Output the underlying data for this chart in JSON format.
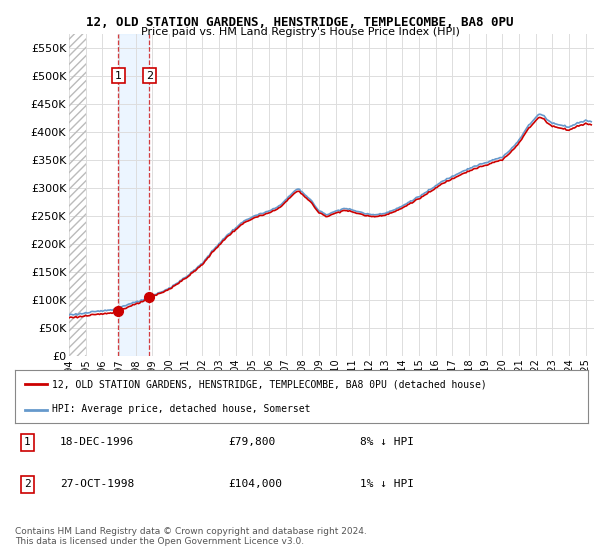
{
  "title": "12, OLD STATION GARDENS, HENSTRIDGE, TEMPLECOMBE, BA8 0PU",
  "subtitle": "Price paid vs. HM Land Registry's House Price Index (HPI)",
  "legend_line1": "12, OLD STATION GARDENS, HENSTRIDGE, TEMPLECOMBE, BA8 0PU (detached house)",
  "legend_line2": "HPI: Average price, detached house, Somerset",
  "transaction1_label": "1",
  "transaction1_date": "18-DEC-1996",
  "transaction1_price": "£79,800",
  "transaction1_hpi": "8% ↓ HPI",
  "transaction2_label": "2",
  "transaction2_date": "27-OCT-1998",
  "transaction2_price": "£104,000",
  "transaction2_hpi": "1% ↓ HPI",
  "footer": "Contains HM Land Registry data © Crown copyright and database right 2024.\nThis data is licensed under the Open Government Licence v3.0.",
  "hpi_color": "#6699cc",
  "price_color": "#cc0000",
  "grid_color": "#dddddd",
  "ylim": [
    0,
    575000
  ],
  "yticks": [
    0,
    50000,
    100000,
    150000,
    200000,
    250000,
    300000,
    350000,
    400000,
    450000,
    500000,
    550000
  ],
  "transaction1_x": 1996.96,
  "transaction1_y": 79800,
  "transaction2_x": 1998.82,
  "transaction2_y": 104000,
  "xmin": 1994.0,
  "xmax": 2025.5
}
